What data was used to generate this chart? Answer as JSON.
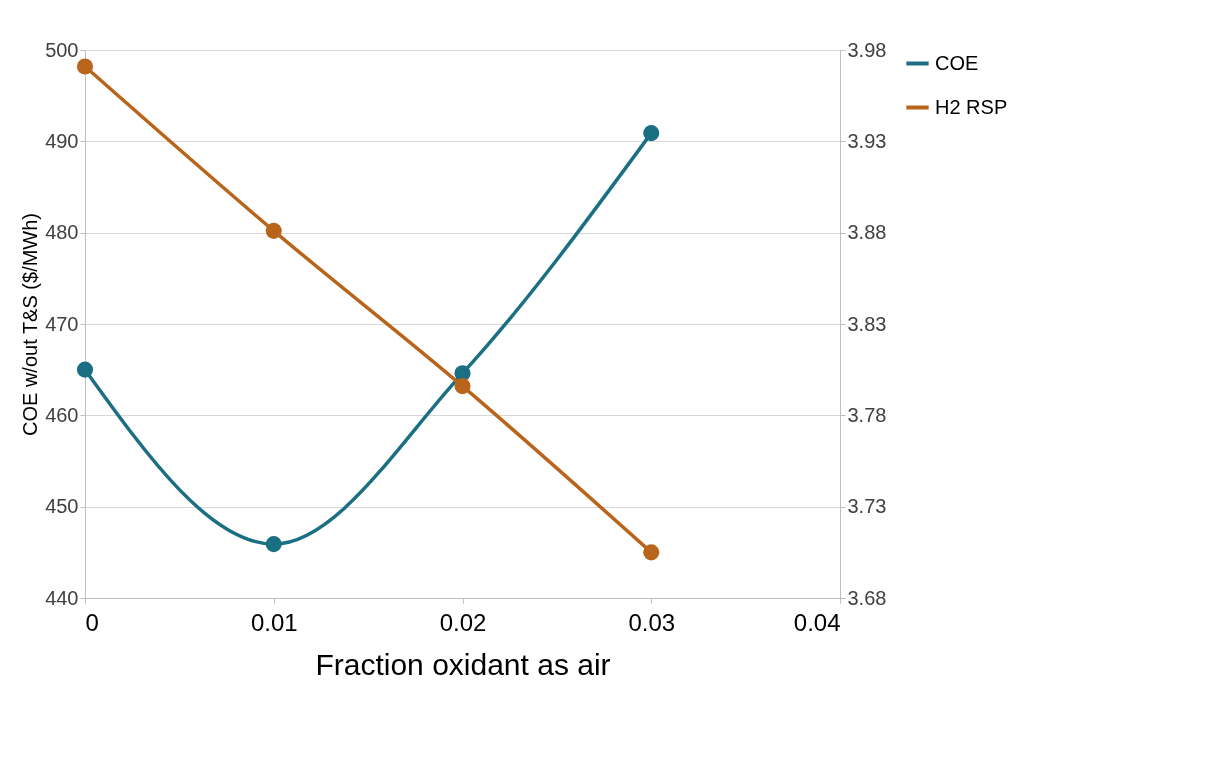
{
  "chart_data": {
    "type": "line",
    "xlabel": "Fraction oxidant as air",
    "ylabel": "COE w/out T&S  ($/MWh)",
    "x": [
      0,
      0.01,
      0.02,
      0.03
    ],
    "series": [
      {
        "name": "COE",
        "color": "#1b6f82",
        "values": [
          465.0,
          445.9,
          464.6,
          490.9
        ]
      },
      {
        "name": "H2 RSP",
        "color": "#b8651b",
        "axis": "y2",
        "values": [
          3.971,
          3.881,
          3.796,
          3.705
        ]
      }
    ],
    "xlim": [
      0,
      0.04
    ],
    "xticks": [
      0,
      0.01,
      0.02,
      0.03,
      0.04
    ],
    "ylim": [
      440,
      500
    ],
    "yticks": [
      440,
      450,
      460,
      470,
      480,
      490,
      500
    ],
    "y2lim": [
      3.68,
      3.98
    ],
    "y2ticks": [
      3.68,
      3.73,
      3.78,
      3.83,
      3.88,
      3.93,
      3.98
    ],
    "grid": "y",
    "legend": "right",
    "marker": "circle"
  }
}
